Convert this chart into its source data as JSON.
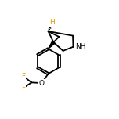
{
  "background_color": "#ffffff",
  "bond_color": "#000000",
  "atom_colors": {
    "F": "#daa000",
    "O": "#000000",
    "N": "#000000",
    "H": "#daa000",
    "C": "#000000"
  },
  "font_size_atom": 6.5,
  "line_width": 1.3,
  "figsize": [
    1.52,
    1.52
  ],
  "dpi": 100,
  "xlim": [
    0,
    10
  ],
  "ylim": [
    0,
    10
  ]
}
